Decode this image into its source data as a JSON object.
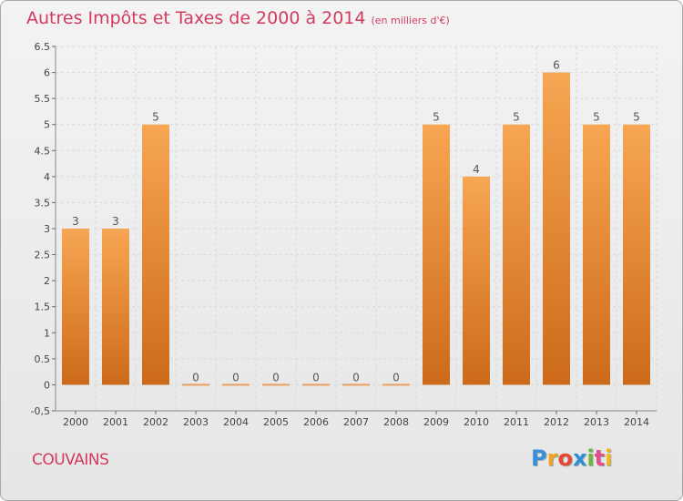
{
  "title": "Autres Impôts et Taxes de 2000 à 2014",
  "title_unit": "(en milliers d'€)",
  "commune": "COUVAINS",
  "logo_text": "Proxiti",
  "colors": {
    "accent": "#d23b5d",
    "bar_top": "#f7a653",
    "bar_bottom": "#cc6a1a"
  },
  "chart_data": {
    "type": "bar",
    "categories": [
      "2000",
      "2001",
      "2002",
      "2003",
      "2004",
      "2005",
      "2006",
      "2007",
      "2008",
      "2009",
      "2010",
      "2011",
      "2012",
      "2013",
      "2014"
    ],
    "values": [
      3,
      3,
      5,
      0,
      0,
      0,
      0,
      0,
      0,
      5,
      4,
      5,
      6,
      5,
      5
    ],
    "data_labels": [
      "3",
      "3",
      "5",
      "0",
      "0",
      "0",
      "0",
      "0",
      "0",
      "5",
      "4",
      "5",
      "6",
      "5",
      "5"
    ],
    "ylim": [
      -0.5,
      6.5
    ],
    "yticks": [
      "-0,5",
      "0",
      "0.5",
      "1",
      "1.5",
      "2",
      "2.5",
      "3",
      "3.5",
      "4",
      "4.5",
      "5",
      "5.5",
      "6",
      "6.5"
    ],
    "ytick_values": [
      -0.5,
      0,
      0.5,
      1,
      1.5,
      2,
      2.5,
      3,
      3.5,
      4,
      4.5,
      5,
      5.5,
      6,
      6.5
    ],
    "grid": true,
    "legend": "none"
  }
}
